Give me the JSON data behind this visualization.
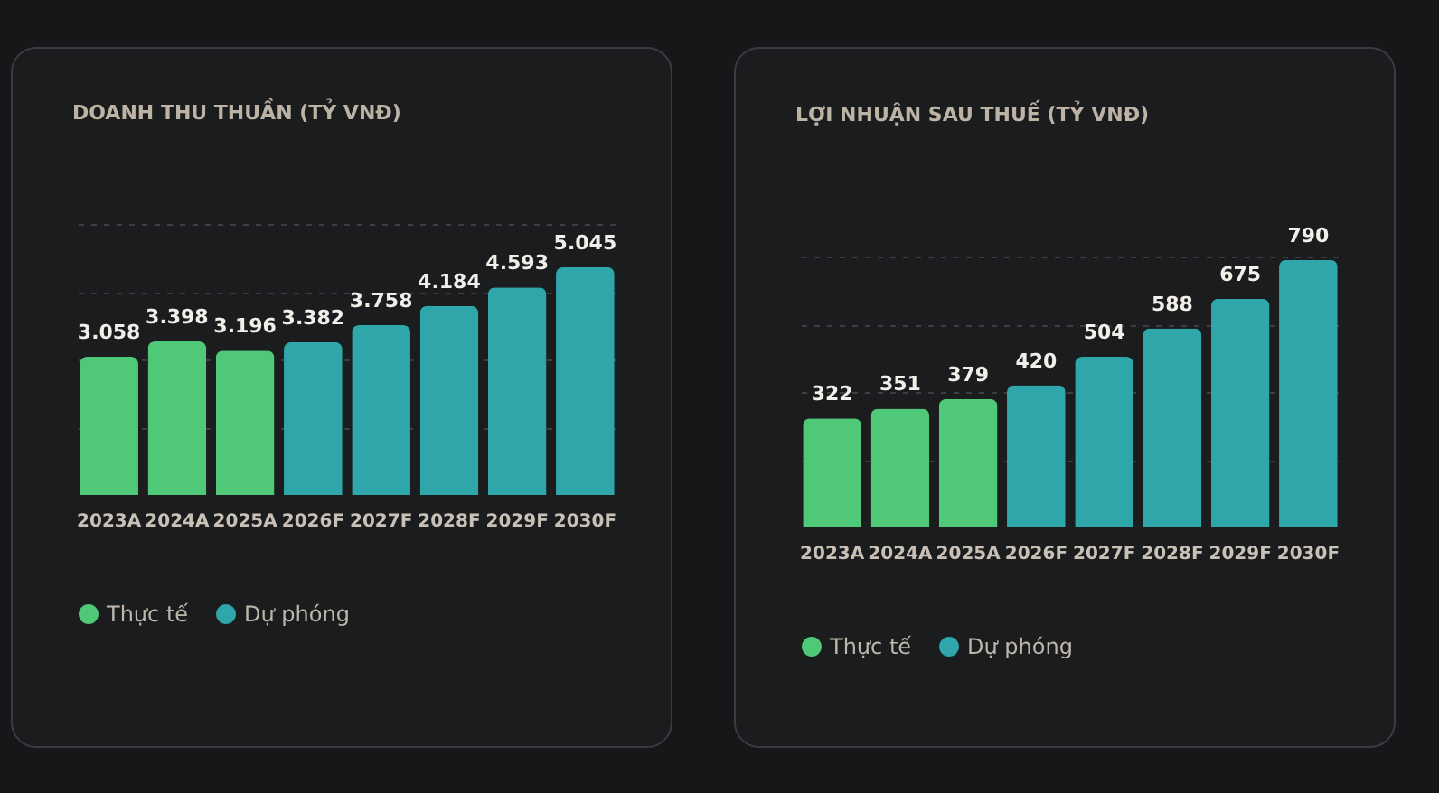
{
  "chart_data": [
    {
      "type": "bar",
      "title": "DOANH THU THUẦN (TỶ VNĐ)",
      "categories": [
        "2023A",
        "2024A",
        "2025A",
        "2026F",
        "2027F",
        "2028F",
        "2029F",
        "2030F"
      ],
      "series": [
        {
          "name": "Thực tế",
          "color": "#4fc978",
          "values": [
            3058,
            3398,
            3196,
            null,
            null,
            null,
            null,
            null
          ],
          "value_labels": [
            "3.058",
            "3.398",
            "3.196",
            null,
            null,
            null,
            null,
            null
          ]
        },
        {
          "name": "Dự phóng",
          "color": "#2ea6aa",
          "values": [
            null,
            null,
            null,
            3382,
            3758,
            4184,
            4593,
            5045
          ],
          "value_labels": [
            null,
            null,
            null,
            "3.382",
            "3.758",
            "4.184",
            "4.593",
            "5.045"
          ]
        }
      ],
      "ylim": [
        0,
        6000
      ],
      "yticks": [
        {
          "value": 1500,
          "label": null
        },
        {
          "value": 3000,
          "label": null
        },
        {
          "value": 4500,
          "label": null
        },
        {
          "value": 6000,
          "label": null
        }
      ],
      "grid": "y",
      "tick_labels": "x",
      "legend": "bottom left"
    },
    {
      "type": "bar",
      "title": "LỢI NHUẬN SAU THUẾ (TỶ VNĐ)",
      "categories": [
        "2023A",
        "2024A",
        "2025A",
        "2026F",
        "2027F",
        "2028F",
        "2029F",
        "2030F"
      ],
      "series": [
        {
          "name": "Thực tế",
          "color": "#4fc978",
          "values": [
            322,
            351,
            379,
            null,
            null,
            null,
            null,
            null
          ],
          "value_labels": [
            "322",
            "351",
            "379",
            null,
            null,
            null,
            null,
            null
          ]
        },
        {
          "name": "Dự phóng",
          "color": "#2ea6aa",
          "values": [
            null,
            null,
            null,
            420,
            504,
            588,
            675,
            790
          ],
          "value_labels": [
            null,
            null,
            null,
            "420",
            "504",
            "588",
            "675",
            "790"
          ]
        }
      ],
      "ylim": [
        0,
        800
      ],
      "yticks": [
        {
          "value": 200,
          "label": null
        },
        {
          "value": 400,
          "label": null
        },
        {
          "value": 600,
          "label": null
        },
        {
          "value": 800,
          "label": null
        }
      ],
      "grid": "y",
      "tick_labels": "x",
      "legend": "bottom left"
    }
  ]
}
